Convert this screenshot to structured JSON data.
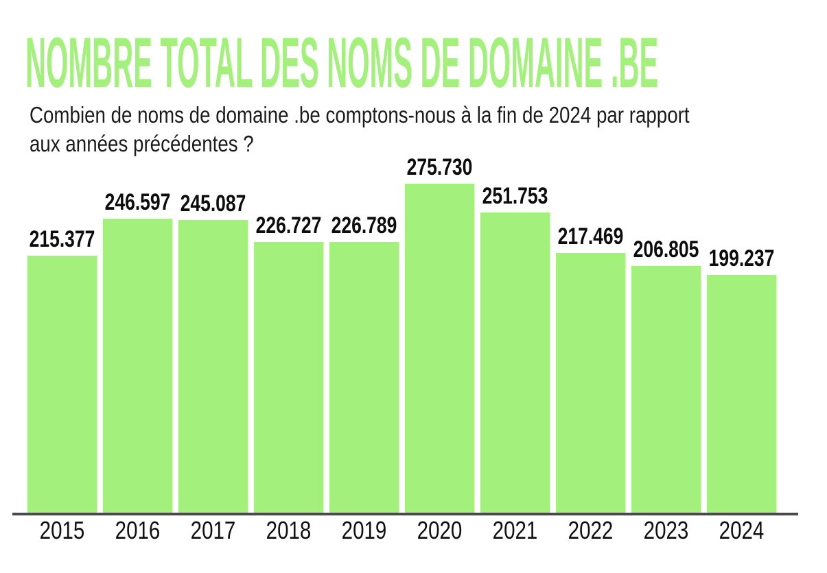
{
  "title": "NOMBRE TOTAL DES NOMS DE DOMAINE .BE",
  "subtitle": [
    "Combien de noms de domaine .be comptons-nous à la fin de 2024 par rapport",
    "aux années précédentes ?"
  ],
  "colors": {
    "green": "#a4f07d",
    "axis": "#4a4a4a",
    "text": "#0d0d0d"
  },
  "chart_data": {
    "type": "bar",
    "title": "NOMBRE TOTAL DES NOMS DE DOMAINE .BE",
    "subtitle": "Combien de noms de domaine .be comptons-nous à la fin de 2024 par rapport aux années précédentes ?",
    "categories": [
      "2015",
      "2016",
      "2017",
      "2018",
      "2019",
      "2020",
      "2021",
      "2022",
      "2023",
      "2024"
    ],
    "values": [
      215377,
      246597,
      245087,
      226727,
      226789,
      275730,
      251753,
      217469,
      206805,
      199237
    ],
    "value_labels": [
      "215.377",
      "246.597",
      "245.087",
      "226.727",
      "226.789",
      "275.730",
      "251.753",
      "217.469",
      "206.805",
      "199.237"
    ],
    "xlabel": "",
    "ylabel": "",
    "ylim": [
      0,
      275730
    ],
    "grid": false,
    "legend": false,
    "bar_color": "#a4f07d"
  }
}
